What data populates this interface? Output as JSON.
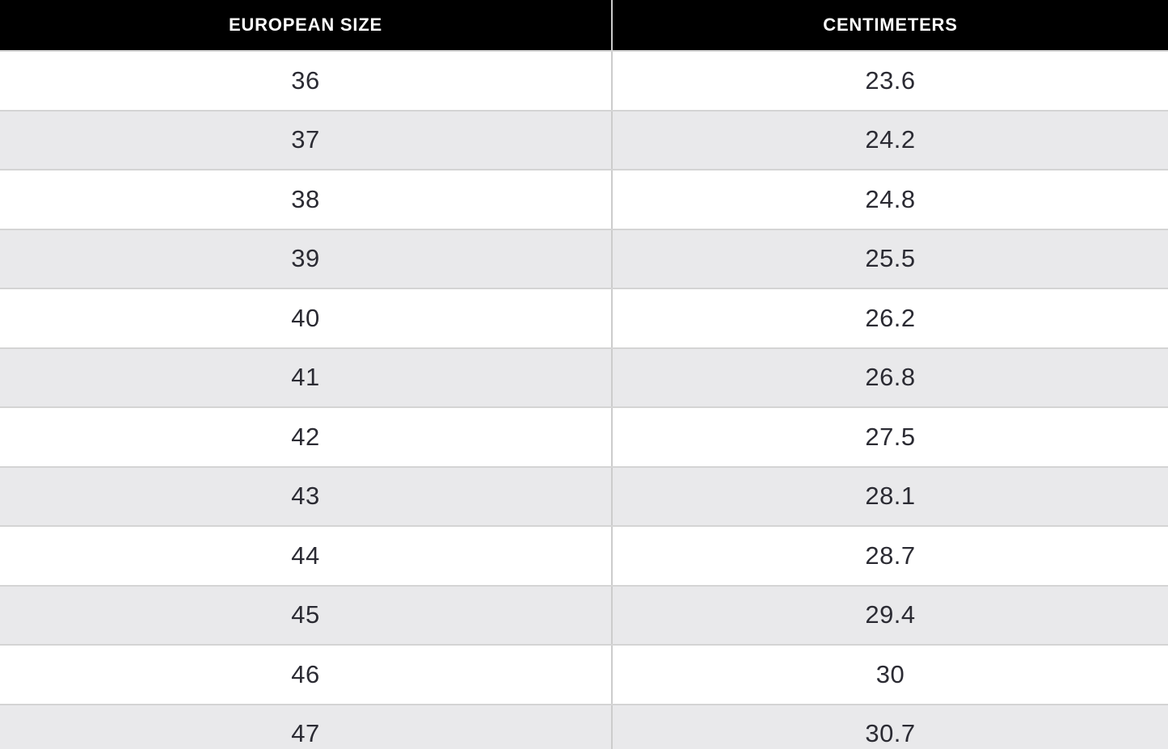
{
  "table": {
    "columns": [
      "EUROPEAN SIZE",
      "CENTIMETERS"
    ],
    "rows": [
      {
        "eu": "36",
        "cm": "23.6"
      },
      {
        "eu": "37",
        "cm": "24.2"
      },
      {
        "eu": "38",
        "cm": "24.8"
      },
      {
        "eu": "39",
        "cm": "25.5"
      },
      {
        "eu": "40",
        "cm": "26.2"
      },
      {
        "eu": "41",
        "cm": "26.8"
      },
      {
        "eu": "42",
        "cm": "27.5"
      },
      {
        "eu": "43",
        "cm": "28.1"
      },
      {
        "eu": "44",
        "cm": "28.7"
      },
      {
        "eu": "45",
        "cm": "29.4"
      },
      {
        "eu": "46",
        "cm": "30"
      },
      {
        "eu": "47",
        "cm": "30.7"
      }
    ]
  },
  "chart_data": {
    "type": "table",
    "title": "",
    "columns": [
      "EUROPEAN SIZE",
      "CENTIMETERS"
    ],
    "rows": [
      [
        "36",
        "23.6"
      ],
      [
        "37",
        "24.2"
      ],
      [
        "38",
        "24.8"
      ],
      [
        "39",
        "25.5"
      ],
      [
        "40",
        "26.2"
      ],
      [
        "41",
        "26.8"
      ],
      [
        "42",
        "27.5"
      ],
      [
        "43",
        "28.1"
      ],
      [
        "44",
        "28.7"
      ],
      [
        "45",
        "29.4"
      ],
      [
        "46",
        "30"
      ],
      [
        "47",
        "30.7"
      ]
    ]
  },
  "colors": {
    "header_bg": "#000000",
    "header_text": "#ffffff",
    "row_bg": "#ffffff",
    "row_alt_bg": "#e9e9eb",
    "divider": "#cccccc",
    "row_border": "#d4d4d4",
    "cell_text": "#2b2b33"
  }
}
